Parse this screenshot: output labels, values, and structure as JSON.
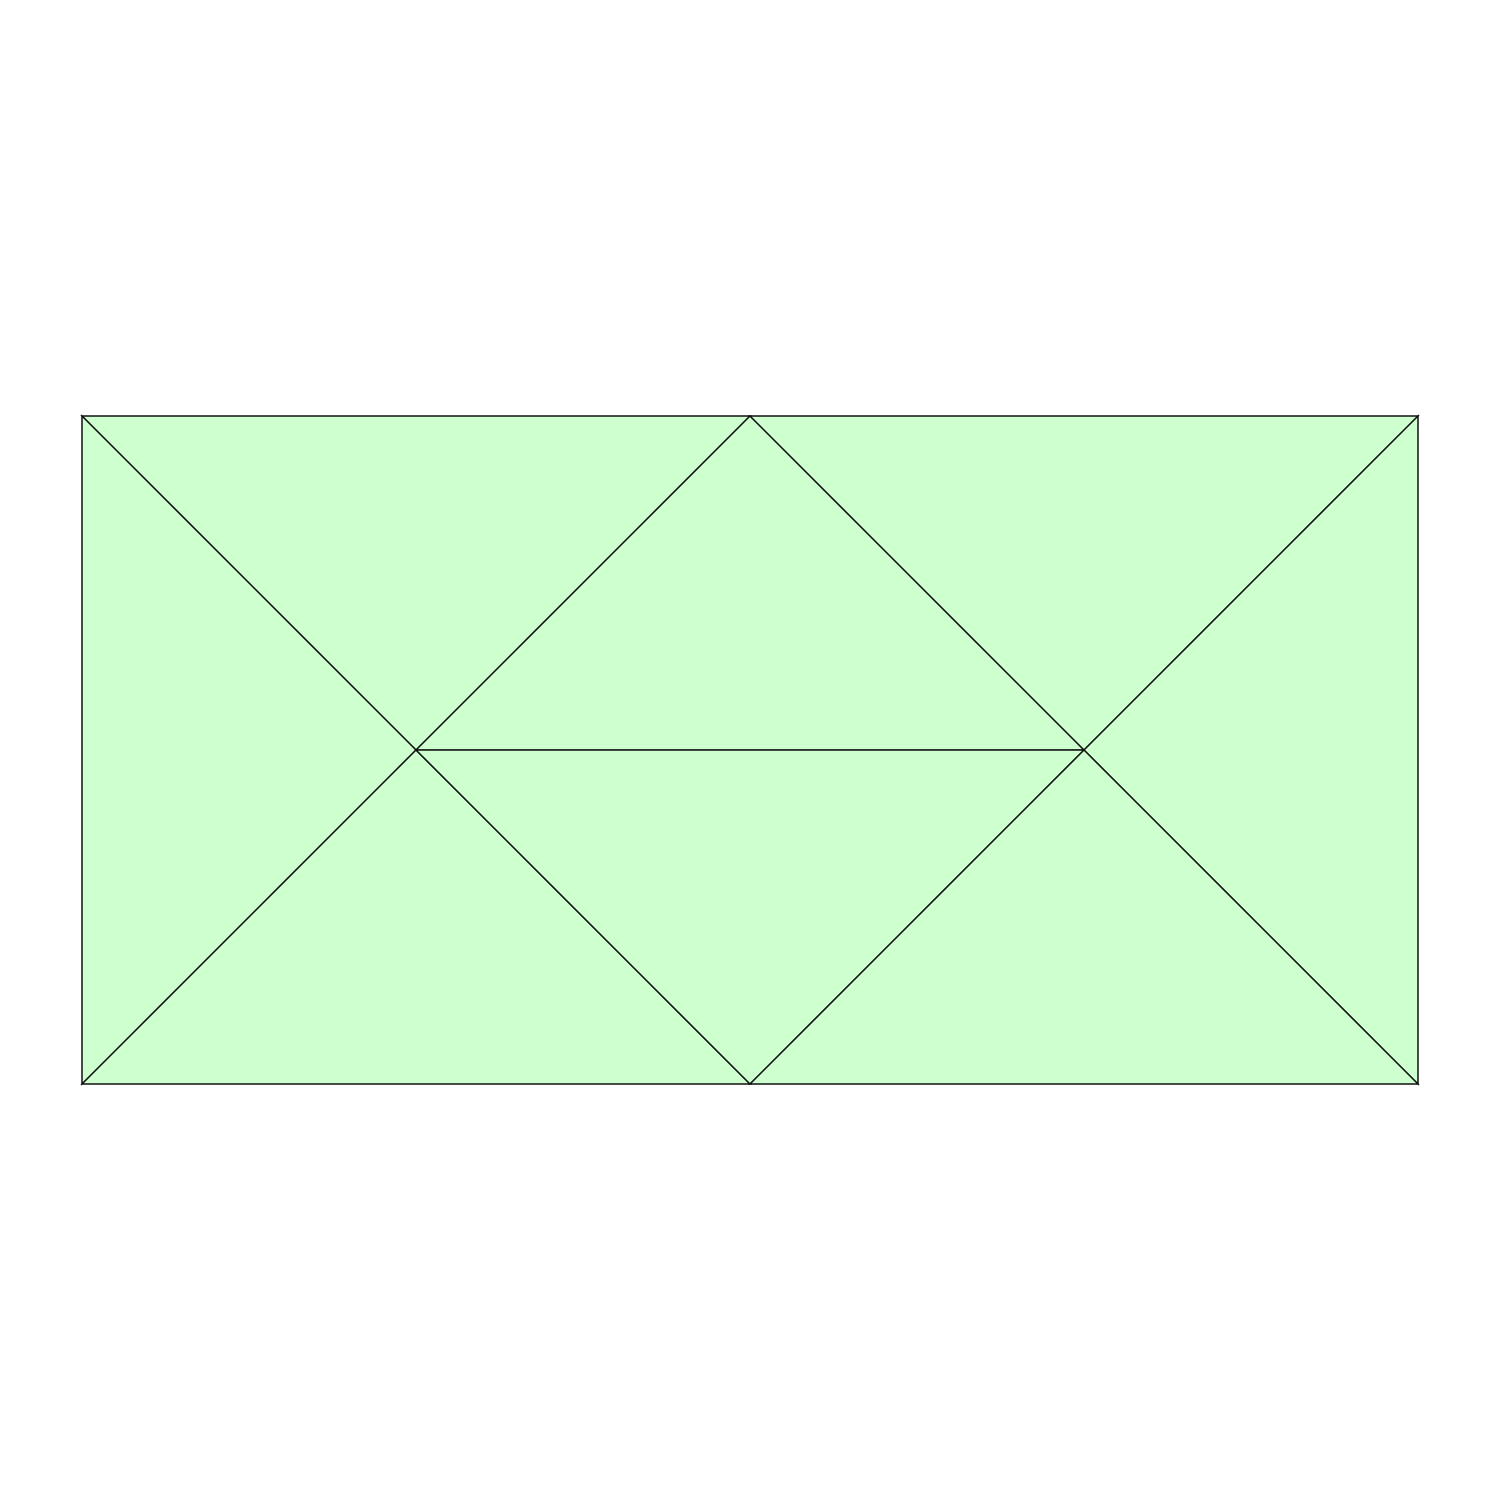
{
  "diagram": {
    "kind": "triangulated-rectangle",
    "colors": {
      "fill": "#ceffce",
      "stroke": "#111111",
      "background": "#ffffff"
    },
    "triangle_count": 8,
    "text": []
  }
}
